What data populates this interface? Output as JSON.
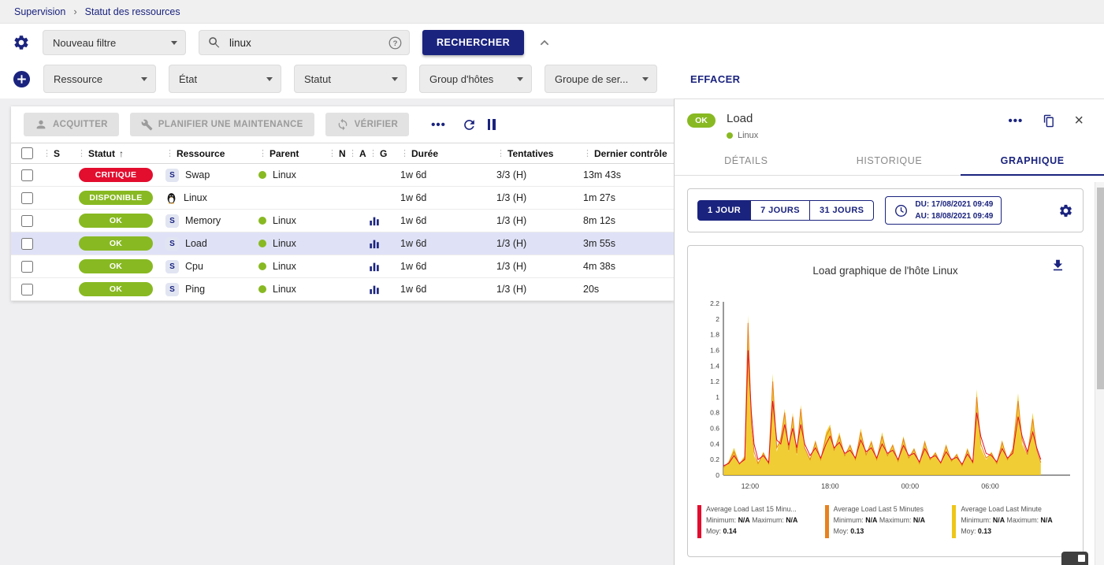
{
  "breadcrumb": {
    "items": [
      "Supervision",
      "Statut des ressources"
    ]
  },
  "icons": {
    "chevron_right": "›",
    "drag": "⋮",
    "sort_asc": "↑",
    "more": "•••",
    "close": "×",
    "help": "?"
  },
  "colors": {
    "primary": "#1a237e",
    "ok_green": "#88b922",
    "critical_red": "#e30d2e",
    "selected_row": "#dfe2f6"
  },
  "filters": {
    "saved_filter": "Nouveau filtre",
    "search_value": "linux",
    "search_button": "RECHERCHER",
    "criteria": [
      "Ressource",
      "État",
      "Statut",
      "Group d'hôtes",
      "Groupe de ser..."
    ],
    "clear_label": "EFFACER"
  },
  "toolbar": {
    "acknowledge": "ACQUITTER",
    "maintenance": "PLANIFIER UNE MAINTENANCE",
    "check": "VÉRIFIER"
  },
  "table": {
    "service_icon_letter": "S",
    "headers": [
      "S",
      "Statut",
      "Ressource",
      "Parent",
      "N",
      "A",
      "G",
      "Durée",
      "Tentatives",
      "Dernier contrôle"
    ],
    "rows": [
      {
        "status": "CRITIQUE",
        "status_color": "#e30d2e",
        "icon": "service",
        "resource": "Swap",
        "parent": "Linux",
        "graph": false,
        "duration": "1w 6d",
        "tries": "3/3 (H)",
        "last_check": "13m 43s",
        "selected": false
      },
      {
        "status": "DISPONIBLE",
        "status_color": "#88b922",
        "icon": "penguin",
        "resource": "Linux",
        "parent": "",
        "graph": false,
        "duration": "1w 6d",
        "tries": "1/3 (H)",
        "last_check": "1m 27s",
        "selected": false
      },
      {
        "status": "OK",
        "status_color": "#88b922",
        "icon": "service",
        "resource": "Memory",
        "parent": "Linux",
        "graph": true,
        "duration": "1w 6d",
        "tries": "1/3 (H)",
        "last_check": "8m 12s",
        "selected": false
      },
      {
        "status": "OK",
        "status_color": "#88b922",
        "icon": "service",
        "resource": "Load",
        "parent": "Linux",
        "graph": true,
        "duration": "1w 6d",
        "tries": "1/3 (H)",
        "last_check": "3m 55s",
        "selected": true
      },
      {
        "status": "OK",
        "status_color": "#88b922",
        "icon": "service",
        "resource": "Cpu",
        "parent": "Linux",
        "graph": true,
        "duration": "1w 6d",
        "tries": "1/3 (H)",
        "last_check": "4m 38s",
        "selected": false
      },
      {
        "status": "OK",
        "status_color": "#88b922",
        "icon": "service",
        "resource": "Ping",
        "parent": "Linux",
        "graph": true,
        "duration": "1w 6d",
        "tries": "1/3 (H)",
        "last_check": "20s",
        "selected": false
      }
    ]
  },
  "panel": {
    "status": "OK",
    "title": "Load",
    "subtitle": "Linux",
    "tabs": [
      "DÉTAILS",
      "HISTORIQUE",
      "GRAPHIQUE"
    ],
    "active_tab": "GRAPHIQUE",
    "ranges": [
      "1 JOUR",
      "7 JOURS",
      "31 JOURS"
    ],
    "active_range": "1 JOUR",
    "date_from": "DU: 17/08/2021 09:49",
    "date_to": "AU: 18/08/2021 09:49"
  },
  "chart_data": {
    "type": "area",
    "title": "Load graphique de l'hôte Linux",
    "xlabel": "",
    "ylabel": "",
    "ylim": [
      0,
      2.2
    ],
    "y_tick_step": 0.2,
    "x_ticks": [
      "12:00",
      "18:00",
      "00:00",
      "06:00"
    ],
    "x_tick_hours": [
      2,
      8,
      14,
      20
    ],
    "x_range_hours": [
      0,
      26
    ],
    "legend_labels": {
      "min": "Minimum:",
      "max": "Maximum:",
      "avg": "Moy:"
    },
    "series": [
      {
        "name": "Average Load Last 15 Minu...",
        "color": "#e30d2e",
        "min": "N/A",
        "max": "N/A",
        "avg": "0.14"
      },
      {
        "name": "Average Load Last 5 Minutes",
        "color": "#e8821e",
        "min": "N/A",
        "max": "N/A",
        "avg": "0.13"
      },
      {
        "name": "Average Load Last Minute",
        "color": "#eec618",
        "min": "N/A",
        "max": "N/A",
        "avg": "0.13"
      }
    ],
    "points": [
      [
        0.0,
        0.12,
        0.1,
        0.1
      ],
      [
        0.4,
        0.15,
        0.16,
        0.18
      ],
      [
        0.8,
        0.25,
        0.3,
        0.35
      ],
      [
        1.2,
        0.15,
        0.14,
        0.15
      ],
      [
        1.6,
        0.2,
        0.22,
        0.25
      ],
      [
        1.85,
        1.6,
        1.95,
        2.05
      ],
      [
        2.1,
        0.8,
        0.65,
        0.6
      ],
      [
        2.3,
        0.4,
        0.3,
        0.25
      ],
      [
        2.6,
        0.2,
        0.15,
        0.15
      ],
      [
        3.0,
        0.25,
        0.28,
        0.3
      ],
      [
        3.4,
        0.16,
        0.15,
        0.15
      ],
      [
        3.7,
        0.95,
        1.2,
        1.3
      ],
      [
        4.0,
        0.45,
        0.35,
        0.3
      ],
      [
        4.3,
        0.4,
        0.45,
        0.5
      ],
      [
        4.6,
        0.65,
        0.8,
        0.85
      ],
      [
        4.9,
        0.38,
        0.32,
        0.3
      ],
      [
        5.2,
        0.6,
        0.75,
        0.8
      ],
      [
        5.5,
        0.35,
        0.28,
        0.25
      ],
      [
        5.8,
        0.65,
        0.85,
        0.9
      ],
      [
        6.1,
        0.4,
        0.35,
        0.35
      ],
      [
        6.5,
        0.25,
        0.2,
        0.2
      ],
      [
        6.9,
        0.35,
        0.42,
        0.45
      ],
      [
        7.3,
        0.22,
        0.2,
        0.2
      ],
      [
        7.7,
        0.4,
        0.5,
        0.55
      ],
      [
        8.0,
        0.5,
        0.6,
        0.65
      ],
      [
        8.3,
        0.35,
        0.32,
        0.3
      ],
      [
        8.7,
        0.42,
        0.5,
        0.55
      ],
      [
        9.1,
        0.28,
        0.25,
        0.25
      ],
      [
        9.5,
        0.32,
        0.38,
        0.4
      ],
      [
        9.9,
        0.22,
        0.2,
        0.2
      ],
      [
        10.3,
        0.45,
        0.55,
        0.6
      ],
      [
        10.7,
        0.3,
        0.26,
        0.25
      ],
      [
        11.1,
        0.35,
        0.42,
        0.45
      ],
      [
        11.5,
        0.22,
        0.2,
        0.2
      ],
      [
        11.9,
        0.4,
        0.5,
        0.55
      ],
      [
        12.3,
        0.28,
        0.25,
        0.25
      ],
      [
        12.7,
        0.32,
        0.38,
        0.4
      ],
      [
        13.1,
        0.2,
        0.18,
        0.18
      ],
      [
        13.5,
        0.38,
        0.46,
        0.5
      ],
      [
        13.9,
        0.25,
        0.22,
        0.22
      ],
      [
        14.3,
        0.28,
        0.33,
        0.35
      ],
      [
        14.7,
        0.17,
        0.15,
        0.15
      ],
      [
        15.1,
        0.34,
        0.42,
        0.45
      ],
      [
        15.5,
        0.22,
        0.2,
        0.2
      ],
      [
        15.9,
        0.25,
        0.28,
        0.3
      ],
      [
        16.3,
        0.16,
        0.15,
        0.15
      ],
      [
        16.7,
        0.3,
        0.37,
        0.4
      ],
      [
        17.1,
        0.2,
        0.18,
        0.18
      ],
      [
        17.5,
        0.23,
        0.26,
        0.28
      ],
      [
        17.9,
        0.14,
        0.12,
        0.12
      ],
      [
        18.3,
        0.27,
        0.32,
        0.35
      ],
      [
        18.7,
        0.17,
        0.15,
        0.15
      ],
      [
        19.0,
        0.8,
        1.0,
        1.1
      ],
      [
        19.3,
        0.5,
        0.4,
        0.35
      ],
      [
        19.7,
        0.28,
        0.22,
        0.2
      ],
      [
        20.1,
        0.25,
        0.28,
        0.3
      ],
      [
        20.5,
        0.17,
        0.15,
        0.15
      ],
      [
        20.9,
        0.34,
        0.42,
        0.45
      ],
      [
        21.3,
        0.22,
        0.2,
        0.2
      ],
      [
        21.7,
        0.28,
        0.32,
        0.35
      ],
      [
        22.1,
        0.75,
        0.95,
        1.05
      ],
      [
        22.4,
        0.5,
        0.45,
        0.4
      ],
      [
        22.8,
        0.3,
        0.26,
        0.25
      ],
      [
        23.2,
        0.55,
        0.72,
        0.8
      ],
      [
        23.5,
        0.35,
        0.32,
        0.3
      ],
      [
        23.8,
        0.2,
        0.16,
        0.15
      ]
    ]
  }
}
